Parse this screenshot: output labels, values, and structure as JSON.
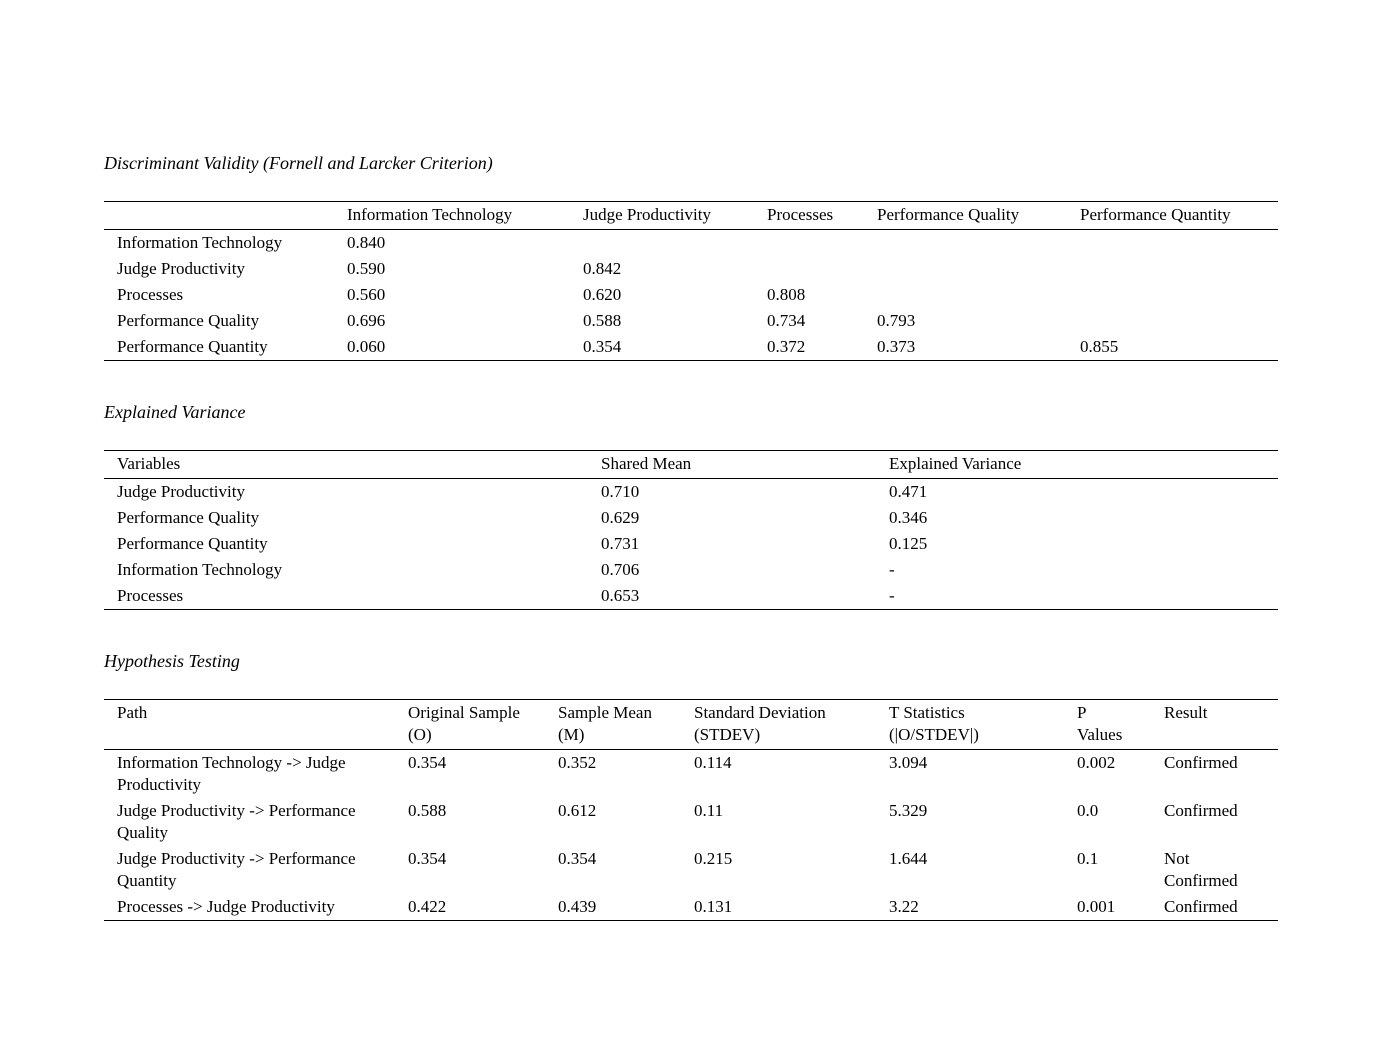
{
  "colors": {
    "background": "#ffffff",
    "text": "#000000",
    "rule": "#000000"
  },
  "discriminant_validity": {
    "title": "Discriminant Validity (Fornell and Larcker Criterion)",
    "headers": [
      "",
      "Information Technology",
      "Judge Productivity",
      "Processes",
      "Performance Quality",
      "Performance Quantity"
    ],
    "rows": [
      [
        "Information Technology",
        "0.840",
        "",
        "",
        "",
        ""
      ],
      [
        "Judge Productivity",
        "0.590",
        "0.842",
        "",
        "",
        ""
      ],
      [
        "Processes",
        "0.560",
        "0.620",
        "0.808",
        "",
        ""
      ],
      [
        "Performance Quality",
        "0.696",
        "0.588",
        "0.734",
        "0.793",
        ""
      ],
      [
        "Performance Quantity",
        "0.060",
        "0.354",
        "0.372",
        "0.373",
        "0.855"
      ]
    ]
  },
  "explained_variance": {
    "title": "Explained Variance",
    "headers": [
      "Variables",
      "Shared Mean",
      "Explained Variance"
    ],
    "rows": [
      [
        "Judge Productivity",
        "0.710",
        "0.471"
      ],
      [
        "Performance Quality",
        "0.629",
        "0.346"
      ],
      [
        "Performance Quantity",
        "0.731",
        "0.125"
      ],
      [
        "Information Technology",
        "0.706",
        "-"
      ],
      [
        "Processes",
        "0.653",
        "-"
      ]
    ]
  },
  "hypothesis_testing": {
    "title": "Hypothesis Testing",
    "headers": [
      "Path",
      "Original Sample\n(O)",
      "Sample Mean\n(M)",
      "Standard Deviation\n(STDEV)",
      "T Statistics\n(|O/STDEV|)",
      "P\nValues",
      "Result"
    ],
    "rows": [
      [
        "Information Technology -> Judge Productivity",
        "0.354",
        "0.352",
        "0.114",
        "3.094",
        "0.002",
        "Confirmed"
      ],
      [
        "Judge Productivity -> Performance Quality",
        "0.588",
        "0.612",
        "0.11",
        "5.329",
        "0.0",
        "Confirmed"
      ],
      [
        "Judge Productivity -> Performance Quantity",
        "0.354",
        "0.354",
        "0.215",
        "1.644",
        "0.1",
        "Not Confirmed"
      ],
      [
        "Processes -> Judge Productivity",
        "0.422",
        "0.439",
        "0.131",
        "3.22",
        "0.001",
        "Confirmed"
      ]
    ]
  }
}
